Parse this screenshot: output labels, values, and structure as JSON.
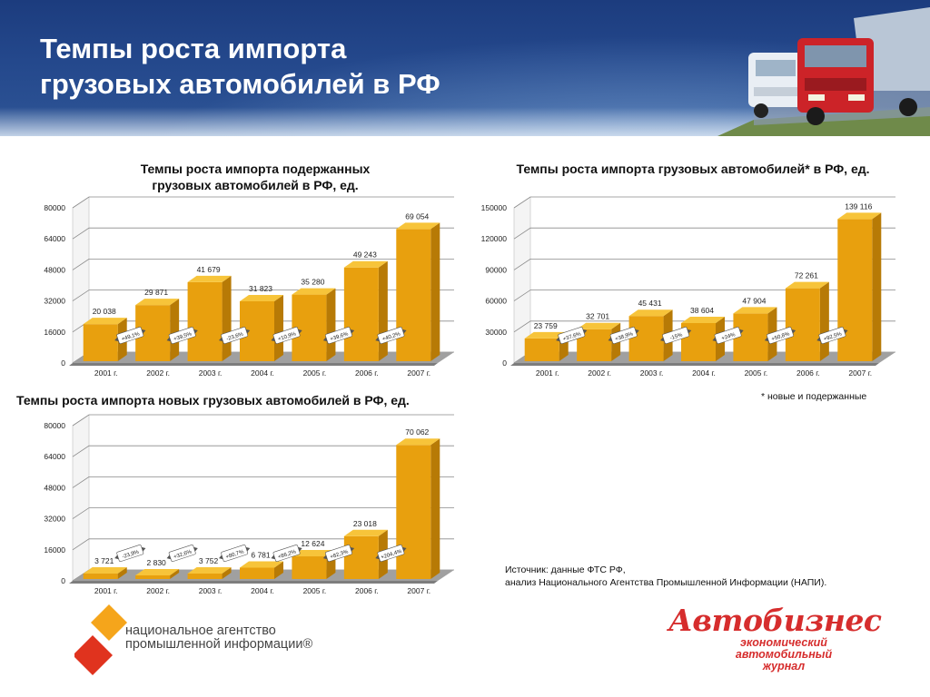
{
  "header": {
    "title_line1": "Темпы роста импорта",
    "title_line2": "грузовых автомобилей в РФ"
  },
  "colors": {
    "header_blue": "#24488c",
    "bar_front": "#e8a00e",
    "bar_top": "#f7c43a",
    "bar_side": "#b77a06",
    "floor": "#a0a0a0",
    "brand_red": "#d62d2d",
    "logo_orange": "#f5a51b",
    "logo_red": "#e0331e"
  },
  "chart_data": [
    {
      "type": "bar",
      "title": "Темпы роста импорта подержанных грузовых автомобилей в РФ, ед.",
      "title_lines": [
        "Темпы роста импорта подержанных",
        "грузовых автомобилей в РФ, ед."
      ],
      "categories": [
        "2001 г.",
        "2002 г.",
        "2003 г.",
        "2004 г.",
        "2005 г.",
        "2006 г.",
        "2007 г."
      ],
      "values": [
        20038,
        29871,
        41679,
        31823,
        35280,
        49243,
        69054
      ],
      "value_labels": [
        "20 038",
        "29 871",
        "41 679",
        "31 823",
        "35 280",
        "49 243",
        "69 054"
      ],
      "growth_labels": [
        "+49,1%",
        "+39,5%",
        "-23,6%",
        "+10,9%",
        "+39,6%",
        "+40,2%"
      ],
      "yticks": [
        0,
        16000,
        32000,
        48000,
        64000,
        80000
      ],
      "ylim": [
        0,
        80000
      ],
      "grid": true
    },
    {
      "type": "bar",
      "title": "Темпы роста импорта грузовых автомобилей* в РФ, ед.",
      "title_lines": [
        "Темпы роста импорта грузовых автомобилей* в РФ, ед."
      ],
      "categories": [
        "2001 г.",
        "2002 г.",
        "2003 г.",
        "2004 г.",
        "2005 г.",
        "2006 г.",
        "2007 г."
      ],
      "values": [
        23759,
        32701,
        45431,
        38604,
        47904,
        72261,
        139116
      ],
      "value_labels": [
        "23 759",
        "32 701",
        "45 431",
        "38 604",
        "47 904",
        "72 261",
        "139 116"
      ],
      "growth_labels": [
        "+37,6%",
        "+38,9%",
        "-15%",
        "+24%",
        "+50,8%",
        "+92,5%"
      ],
      "yticks": [
        0,
        30000,
        60000,
        90000,
        120000,
        150000
      ],
      "ylim": [
        0,
        150000
      ],
      "grid": true
    },
    {
      "type": "bar",
      "title": "Темпы роста импорта новых грузовых автомобилей в РФ, ед.",
      "title_lines": [
        "Темпы роста импорта новых грузовых автомобилей в РФ, ед."
      ],
      "categories": [
        "2001 г.",
        "2002 г.",
        "2003 г.",
        "2004 г.",
        "2005 г.",
        "2006 г.",
        "2007 г."
      ],
      "values": [
        3721,
        2830,
        3752,
        6781,
        12624,
        23018,
        70062
      ],
      "value_labels": [
        "3 721",
        "2 830",
        "3 752",
        "6 781",
        "12 624",
        "23 018",
        "70 062"
      ],
      "growth_labels": [
        "-23,9%",
        "+32,6%",
        "+80,7%",
        "+86,2%",
        "+82,3%",
        "+204,4%"
      ],
      "yticks": [
        0,
        16000,
        32000,
        48000,
        64000,
        80000
      ],
      "ylim": [
        0,
        80000
      ],
      "grid": true
    }
  ],
  "footnote": "* новые и подержанные",
  "source": {
    "line1": "Источник: данные ФТС РФ,",
    "line2": "анализ Национального Агентства Промышленной Информации (НАПИ)."
  },
  "logos": {
    "napi_line1": "национальное агентство",
    "napi_line2": "промышленной информации®",
    "avtobiznes_name": "Автобизнес",
    "avtobiznes_sub1": "экономический",
    "avtobiznes_sub2": "автомобильный",
    "avtobiznes_sub3": "журнал"
  }
}
